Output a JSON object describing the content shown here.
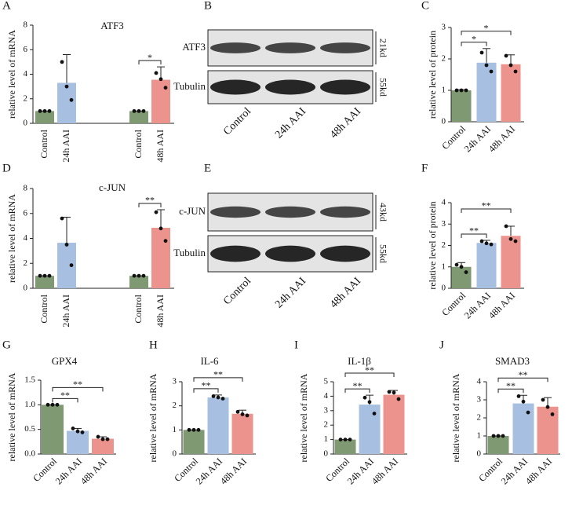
{
  "chart_data": [
    {
      "type": "bar",
      "panel": "A",
      "title": "ATF3",
      "ylabel": "relative level of mRNA",
      "categories": [
        "Control",
        "24h AAI",
        "Control",
        "48h AAI"
      ],
      "values": [
        1,
        3.3,
        1,
        3.55
      ],
      "errors": [
        0,
        2.3,
        0,
        1.05
      ],
      "points": [
        [
          1,
          1,
          1
        ],
        [
          5.0,
          3.0,
          1.9
        ],
        [
          1,
          1,
          1
        ],
        [
          4.1,
          3.6,
          2.9
        ]
      ],
      "colors": [
        "#7f9a72",
        "#a7bfe0",
        "#7f9a72",
        "#ec938d"
      ],
      "ylim": [
        0,
        8
      ],
      "yticks": [
        0,
        2,
        4,
        6,
        8
      ],
      "significance": [
        {
          "from": 2,
          "to": 3,
          "label": "*"
        }
      ]
    },
    {
      "type": "blot",
      "panel": "B",
      "lanes": [
        "Control",
        "24h AAI",
        "48h AAI"
      ],
      "bands": [
        {
          "name": "ATF3",
          "size": "21kd"
        },
        {
          "name": "Tubulin",
          "size": "55kd"
        }
      ]
    },
    {
      "type": "bar",
      "panel": "C",
      "ylabel": "relative level of protein",
      "categories": [
        "Control",
        "24h AAI",
        "48h AAI"
      ],
      "values": [
        1,
        1.88,
        1.83
      ],
      "errors": [
        0.02,
        0.45,
        0.3
      ],
      "points": [
        [
          1,
          1,
          1
        ],
        [
          2.2,
          1.8,
          1.6
        ],
        [
          2.1,
          1.8,
          1.6
        ]
      ],
      "colors": [
        "#7f9a72",
        "#a7bfe0",
        "#ec938d"
      ],
      "ylim": [
        0,
        3
      ],
      "yticks": [
        0,
        1,
        2,
        3
      ],
      "significance": [
        {
          "from": 0,
          "to": 1,
          "label": "*"
        },
        {
          "from": 0,
          "to": 2,
          "label": "*"
        }
      ]
    },
    {
      "type": "bar",
      "panel": "D",
      "title": "c-JUN",
      "ylabel": "relative level of mRNA",
      "categories": [
        "Control",
        "24h AAI",
        "Control",
        "48h AAI"
      ],
      "values": [
        1,
        3.65,
        1,
        4.85
      ],
      "errors": [
        0,
        2.05,
        0,
        1.45
      ],
      "points": [
        [
          1,
          1,
          1
        ],
        [
          5.6,
          3.5,
          1.85
        ],
        [
          1,
          1,
          1
        ],
        [
          6.1,
          4.8,
          3.8
        ]
      ],
      "colors": [
        "#7f9a72",
        "#a7bfe0",
        "#7f9a72",
        "#ec938d"
      ],
      "ylim": [
        0,
        8
      ],
      "yticks": [
        0,
        2,
        4,
        6,
        8
      ],
      "significance": [
        {
          "from": 2,
          "to": 3,
          "label": "**"
        }
      ]
    },
    {
      "type": "blot",
      "panel": "E",
      "lanes": [
        "Control",
        "24h AAI",
        "48h AAI"
      ],
      "bands": [
        {
          "name": "c-JUN",
          "size": "43kd"
        },
        {
          "name": "Tubulin",
          "size": "55kd"
        }
      ]
    },
    {
      "type": "bar",
      "panel": "F",
      "ylabel": "relative level of protein",
      "categories": [
        "Control",
        "24h AAI",
        "48h AAI"
      ],
      "values": [
        1,
        2.12,
        2.45
      ],
      "errors": [
        0.2,
        0.12,
        0.45
      ],
      "points": [
        [
          1.1,
          1.0,
          0.75
        ],
        [
          2.2,
          2.1,
          2.05
        ],
        [
          2.9,
          2.3,
          2.2
        ]
      ],
      "colors": [
        "#7f9a72",
        "#a7bfe0",
        "#ec938d"
      ],
      "ylim": [
        0,
        4
      ],
      "yticks": [
        0,
        1,
        2,
        3,
        4
      ],
      "significance": [
        {
          "from": 0,
          "to": 1,
          "label": "**"
        },
        {
          "from": 0,
          "to": 2,
          "label": "**"
        }
      ]
    },
    {
      "type": "bar",
      "panel": "G",
      "title": "GPX4",
      "ylabel": "relative level of mRNA",
      "categories": [
        "Control",
        "24h AAI",
        "48h AAI"
      ],
      "values": [
        1,
        0.47,
        0.31
      ],
      "errors": [
        0,
        0.05,
        0.04
      ],
      "points": [
        [
          1,
          1,
          1
        ],
        [
          0.52,
          0.46,
          0.44
        ],
        [
          0.35,
          0.3,
          0.3
        ]
      ],
      "colors": [
        "#7f9a72",
        "#a7bfe0",
        "#ec938d"
      ],
      "ylim": [
        0,
        1.5
      ],
      "yticks": [
        {
          "value": 0,
          "label": "0.0"
        },
        0.5,
        {
          "value": 1,
          "label": "1.0"
        },
        1.5
      ],
      "significance": [
        {
          "from": 0,
          "to": 1,
          "label": "**"
        },
        {
          "from": 0,
          "to": 2,
          "label": "**"
        }
      ]
    },
    {
      "type": "bar",
      "panel": "H",
      "title": "IL-6",
      "ylabel": "relative level of mRNA",
      "categories": [
        "Control",
        "24h AAI",
        "48h AAI"
      ],
      "values": [
        1,
        2.35,
        1.67
      ],
      "errors": [
        0,
        0.1,
        0.15
      ],
      "points": [
        [
          1,
          1,
          1
        ],
        [
          2.4,
          2.35,
          2.3
        ],
        [
          1.75,
          1.65,
          1.6
        ]
      ],
      "colors": [
        "#7f9a72",
        "#a7bfe0",
        "#ec938d"
      ],
      "ylim": [
        0,
        3
      ],
      "yticks": [
        0,
        1,
        2,
        3
      ],
      "significance": [
        {
          "from": 0,
          "to": 1,
          "label": "**"
        },
        {
          "from": 0,
          "to": 2,
          "label": "**"
        }
      ]
    },
    {
      "type": "bar",
      "panel": "I",
      "title": "IL-1β",
      "ylabel": "relative level of mRNA",
      "categories": [
        "Control",
        "24h AAI",
        "48h AAI"
      ],
      "values": [
        1,
        3.42,
        4.1
      ],
      "errors": [
        0,
        0.65,
        0.3
      ],
      "points": [
        [
          1,
          1,
          1
        ],
        [
          3.9,
          3.6,
          2.8
        ],
        [
          4.3,
          4.25,
          3.8
        ]
      ],
      "colors": [
        "#7f9a72",
        "#a7bfe0",
        "#ec938d"
      ],
      "ylim": [
        0,
        5
      ],
      "yticks": [
        0,
        1,
        2,
        3,
        4,
        5
      ],
      "significance": [
        {
          "from": 0,
          "to": 1,
          "label": "**"
        },
        {
          "from": 0,
          "to": 2,
          "label": "**"
        }
      ]
    },
    {
      "type": "bar",
      "panel": "J",
      "title": "SMAD3",
      "ylabel": "relative level of mRNA",
      "categories": [
        "Control",
        "24h AAI",
        "48h AAI"
      ],
      "values": [
        1,
        2.8,
        2.62
      ],
      "errors": [
        0,
        0.45,
        0.5
      ],
      "points": [
        [
          1,
          1,
          1
        ],
        [
          3.2,
          2.9,
          2.3
        ],
        [
          3.0,
          2.6,
          2.2
        ]
      ],
      "colors": [
        "#7f9a72",
        "#a7bfe0",
        "#ec938d"
      ],
      "ylim": [
        0,
        4
      ],
      "yticks": [
        0,
        1,
        2,
        3,
        4
      ],
      "significance": [
        {
          "from": 0,
          "to": 1,
          "label": "**"
        },
        {
          "from": 0,
          "to": 2,
          "label": "**"
        }
      ]
    }
  ]
}
